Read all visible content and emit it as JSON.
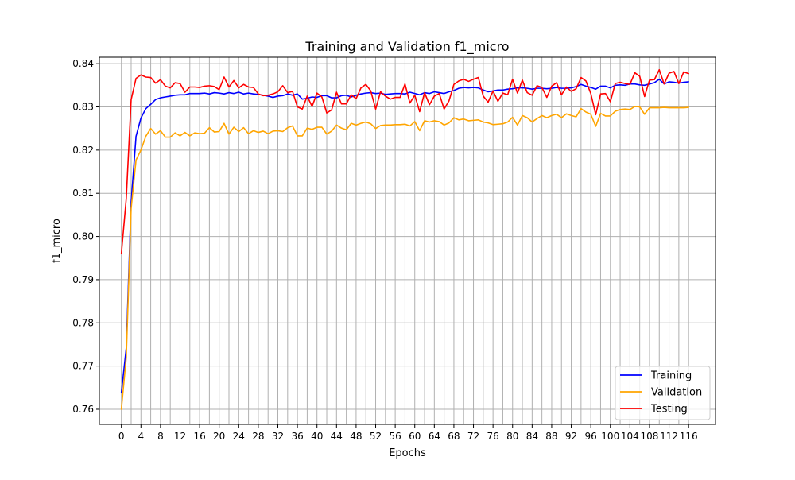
{
  "chart_data": {
    "type": "line",
    "title": "Training and Validation f1_micro",
    "xlabel": "Epochs",
    "ylabel": "f1_micro",
    "xlim": [
      -4.5,
      121.5
    ],
    "ylim": [
      0.7565,
      0.8415
    ],
    "x_ticks": [
      0,
      4,
      8,
      12,
      16,
      20,
      24,
      28,
      32,
      36,
      40,
      44,
      48,
      52,
      56,
      60,
      64,
      68,
      72,
      76,
      80,
      84,
      88,
      92,
      96,
      100,
      104,
      108,
      112,
      116
    ],
    "y_ticks": [
      0.76,
      0.77,
      0.78,
      0.79,
      0.8,
      0.81,
      0.82,
      0.83,
      0.84
    ],
    "grid": true,
    "grid_x_step": 2,
    "legend_position": "bottom-right",
    "series": [
      {
        "name": "Training",
        "color": "#0000ff",
        "values": [
          0.7638,
          0.7742,
          0.808,
          0.8232,
          0.8274,
          0.8296,
          0.8306,
          0.8317,
          0.8321,
          0.8323,
          0.8325,
          0.8327,
          0.8328,
          0.8328,
          0.8331,
          0.8331,
          0.8331,
          0.8332,
          0.833,
          0.8333,
          0.8332,
          0.833,
          0.8333,
          0.8331,
          0.8334,
          0.833,
          0.8332,
          0.833,
          0.8329,
          0.8327,
          0.8325,
          0.8322,
          0.8325,
          0.8326,
          0.833,
          0.8327,
          0.833,
          0.8318,
          0.832,
          0.8323,
          0.8322,
          0.8326,
          0.8326,
          0.8321,
          0.8321,
          0.8326,
          0.8327,
          0.8323,
          0.8327,
          0.833,
          0.8332,
          0.8333,
          0.8331,
          0.8332,
          0.8329,
          0.833,
          0.8331,
          0.8331,
          0.833,
          0.8334,
          0.8331,
          0.8328,
          0.8333,
          0.8331,
          0.8335,
          0.8333,
          0.8331,
          0.8335,
          0.8338,
          0.8343,
          0.8345,
          0.8344,
          0.8345,
          0.8344,
          0.8339,
          0.8335,
          0.8337,
          0.8339,
          0.8339,
          0.8341,
          0.8342,
          0.8344,
          0.8344,
          0.8343,
          0.8341,
          0.8343,
          0.8343,
          0.8342,
          0.8343,
          0.8345,
          0.8343,
          0.8343,
          0.8344,
          0.8347,
          0.8352,
          0.8348,
          0.8345,
          0.8341,
          0.8348,
          0.8348,
          0.8344,
          0.835,
          0.8351,
          0.835,
          0.8353,
          0.8353,
          0.8351,
          0.835,
          0.8353,
          0.8356,
          0.8364,
          0.8353,
          0.8358,
          0.8357,
          0.8355,
          0.8357,
          0.8358
        ]
      },
      {
        "name": "Validation",
        "color": "#ffa500",
        "values": [
          0.76,
          0.772,
          0.8065,
          0.8177,
          0.82,
          0.8232,
          0.825,
          0.8237,
          0.8245,
          0.823,
          0.823,
          0.824,
          0.8233,
          0.8241,
          0.8233,
          0.824,
          0.8238,
          0.8239,
          0.8252,
          0.8242,
          0.8243,
          0.8262,
          0.8237,
          0.8253,
          0.8243,
          0.8252,
          0.8238,
          0.8245,
          0.8241,
          0.8244,
          0.8238,
          0.8244,
          0.8245,
          0.8243,
          0.8252,
          0.8256,
          0.8233,
          0.8233,
          0.8251,
          0.8248,
          0.8253,
          0.8253,
          0.8237,
          0.8244,
          0.8258,
          0.8251,
          0.8247,
          0.8262,
          0.8258,
          0.8262,
          0.8265,
          0.8261,
          0.825,
          0.8257,
          0.8258,
          0.8258,
          0.8259,
          0.8259,
          0.826,
          0.8256,
          0.8266,
          0.8245,
          0.8268,
          0.8265,
          0.8268,
          0.8266,
          0.8258,
          0.8263,
          0.8275,
          0.827,
          0.8272,
          0.8268,
          0.8269,
          0.827,
          0.8265,
          0.8263,
          0.8259,
          0.826,
          0.8261,
          0.8265,
          0.8276,
          0.8258,
          0.828,
          0.8275,
          0.8265,
          0.8273,
          0.828,
          0.8275,
          0.828,
          0.8283,
          0.8275,
          0.8284,
          0.828,
          0.8277,
          0.8296,
          0.8288,
          0.8283,
          0.8255,
          0.8285,
          0.8279,
          0.8279,
          0.829,
          0.8294,
          0.8295,
          0.8294,
          0.8301,
          0.83,
          0.8283,
          0.8298,
          0.8298,
          0.8298,
          0.8299,
          0.8298,
          0.8298,
          0.8298,
          0.8298,
          0.8299
        ]
      },
      {
        "name": "Testing",
        "color": "#ff0000",
        "values": [
          0.796,
          0.8088,
          0.8317,
          0.8366,
          0.8374,
          0.8369,
          0.8368,
          0.8355,
          0.8363,
          0.8348,
          0.8344,
          0.8356,
          0.8354,
          0.8334,
          0.8346,
          0.8346,
          0.8345,
          0.8348,
          0.8349,
          0.8347,
          0.834,
          0.8369,
          0.8346,
          0.8361,
          0.8344,
          0.8352,
          0.8346,
          0.8345,
          0.833,
          0.8326,
          0.8327,
          0.833,
          0.8335,
          0.8349,
          0.8333,
          0.8336,
          0.83,
          0.8295,
          0.8325,
          0.8301,
          0.8332,
          0.8323,
          0.8286,
          0.8293,
          0.8334,
          0.8307,
          0.8307,
          0.8328,
          0.8319,
          0.8344,
          0.8352,
          0.8337,
          0.8295,
          0.8335,
          0.8325,
          0.8318,
          0.8322,
          0.8322,
          0.8353,
          0.8309,
          0.8327,
          0.8289,
          0.8333,
          0.8305,
          0.8325,
          0.8331,
          0.8295,
          0.8314,
          0.8352,
          0.836,
          0.8364,
          0.8359,
          0.8364,
          0.8368,
          0.8325,
          0.8311,
          0.8337,
          0.8313,
          0.8332,
          0.8328,
          0.8364,
          0.8332,
          0.8362,
          0.8333,
          0.8327,
          0.8349,
          0.8345,
          0.8322,
          0.8348,
          0.8356,
          0.8328,
          0.8346,
          0.8336,
          0.8342,
          0.8368,
          0.836,
          0.8331,
          0.8282,
          0.833,
          0.8331,
          0.8312,
          0.8354,
          0.8357,
          0.8354,
          0.8352,
          0.8379,
          0.8371,
          0.8324,
          0.8362,
          0.8363,
          0.8386,
          0.8353,
          0.8378,
          0.8382,
          0.8354,
          0.8381,
          0.8377
        ]
      }
    ]
  }
}
